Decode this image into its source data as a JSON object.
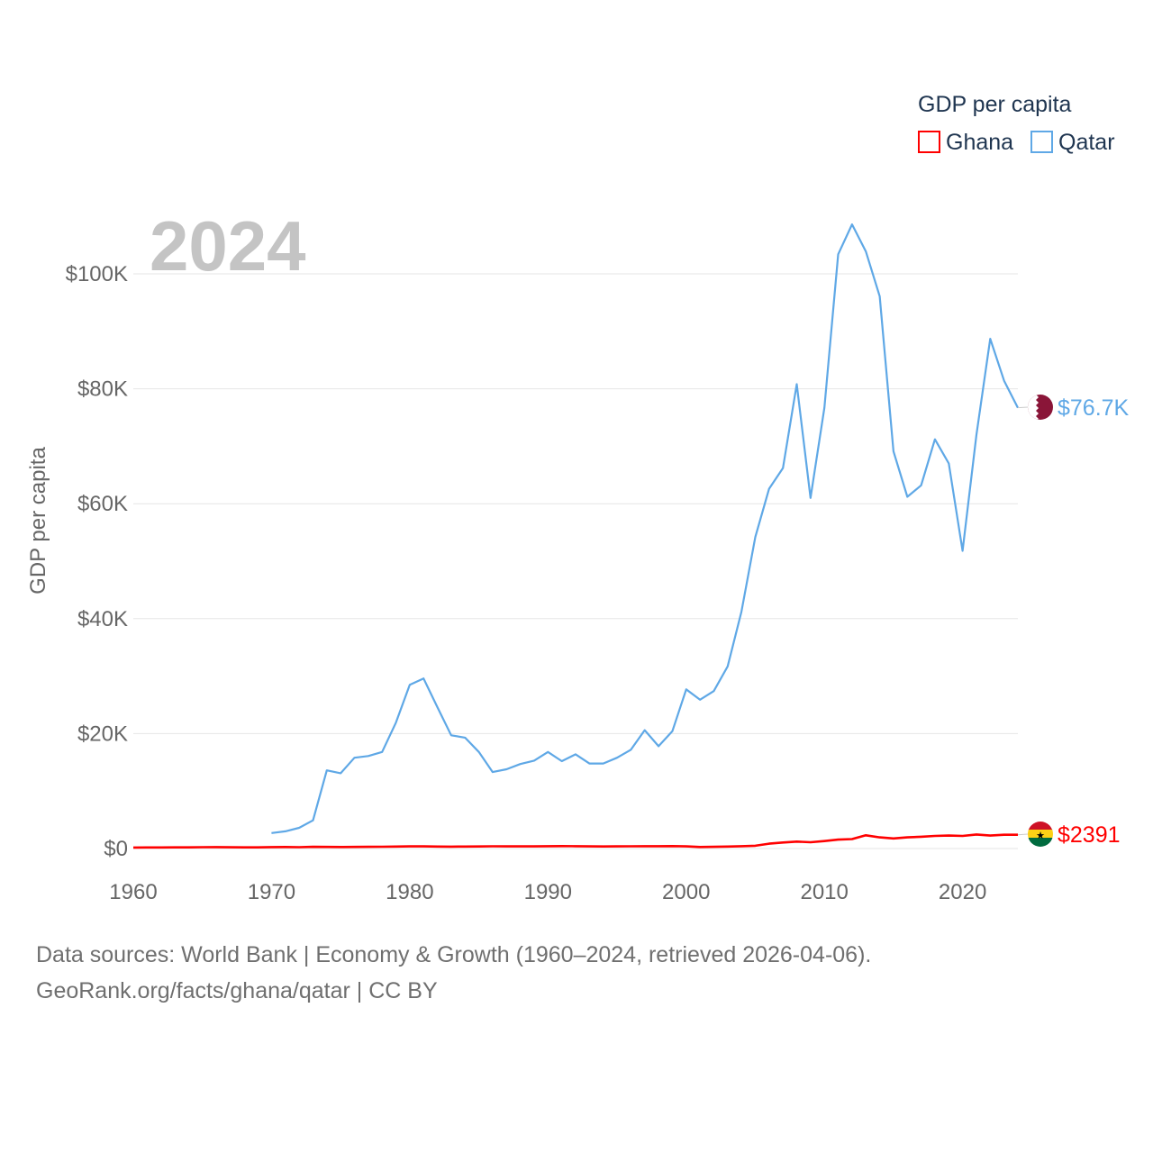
{
  "chart_data": {
    "type": "line",
    "legend_title": "GDP per capita",
    "ylabel": "GDP per capita",
    "highlight_year": "2024",
    "x_ticks": [
      1960,
      1970,
      1980,
      1990,
      2000,
      2010,
      2020
    ],
    "y_ticks": [
      {
        "value": 0,
        "label": "$0"
      },
      {
        "value": 20000,
        "label": "$20K"
      },
      {
        "value": 40000,
        "label": "$40K"
      },
      {
        "value": 60000,
        "label": "$60K"
      },
      {
        "value": 80000,
        "label": "$80K"
      },
      {
        "value": 100000,
        "label": "$100K"
      }
    ],
    "xlim": [
      1960,
      2024
    ],
    "ylim": [
      0,
      110000
    ],
    "series": [
      {
        "name": "Ghana",
        "color": "#ff0000",
        "end_label": "$2391",
        "flag": "ghana-flag",
        "x": [
          1960,
          1961,
          1962,
          1963,
          1964,
          1965,
          1966,
          1967,
          1968,
          1969,
          1970,
          1971,
          1972,
          1973,
          1974,
          1975,
          1976,
          1977,
          1978,
          1979,
          1980,
          1981,
          1982,
          1983,
          1984,
          1985,
          1986,
          1987,
          1988,
          1989,
          1990,
          1991,
          1992,
          1993,
          1994,
          1995,
          1996,
          1997,
          1998,
          1999,
          2000,
          2001,
          2002,
          2003,
          2004,
          2005,
          2006,
          2007,
          2008,
          2009,
          2010,
          2011,
          2012,
          2013,
          2014,
          2015,
          2016,
          2017,
          2018,
          2019,
          2020,
          2021,
          2022,
          2023,
          2024
        ],
        "values": [
          180,
          185,
          190,
          200,
          210,
          230,
          250,
          220,
          200,
          210,
          250,
          260,
          240,
          300,
          280,
          270,
          280,
          300,
          320,
          340,
          380,
          370,
          350,
          330,
          340,
          360,
          390,
          380,
          370,
          380,
          400,
          420,
          410,
          380,
          360,
          370,
          390,
          400,
          410,
          420,
          380,
          270,
          300,
          350,
          400,
          480,
          850,
          1050,
          1200,
          1100,
          1300,
          1550,
          1650,
          2300,
          1950,
          1750,
          1950,
          2050,
          2200,
          2250,
          2200,
          2450,
          2250,
          2400,
          2391
        ]
      },
      {
        "name": "Qatar",
        "color": "#5fa8e6",
        "end_label": "$76.7K",
        "flag": "qatar-flag",
        "x": [
          1970,
          1971,
          1972,
          1973,
          1974,
          1975,
          1976,
          1977,
          1978,
          1979,
          1980,
          1981,
          1982,
          1983,
          1984,
          1985,
          1986,
          1987,
          1988,
          1989,
          1990,
          1991,
          1992,
          1993,
          1994,
          1995,
          1996,
          1997,
          1998,
          1999,
          2000,
          2001,
          2002,
          2003,
          2004,
          2005,
          2006,
          2007,
          2008,
          2009,
          2010,
          2011,
          2012,
          2013,
          2014,
          2015,
          2016,
          2017,
          2018,
          2019,
          2020,
          2021,
          2022,
          2023,
          2024
        ],
        "values": [
          2700,
          3000,
          3600,
          4900,
          13600,
          13100,
          15800,
          16100,
          16800,
          21900,
          28500,
          29600,
          24600,
          19700,
          19300,
          16800,
          13300,
          13800,
          14700,
          15300,
          16800,
          15200,
          16400,
          14800,
          14800,
          15800,
          17200,
          20600,
          17800,
          20400,
          27700,
          25900,
          27400,
          31700,
          41200,
          54200,
          62600,
          66200,
          80800,
          61000,
          76700,
          103400,
          108600,
          103900,
          96100,
          69100,
          61200,
          63200,
          71200,
          67000,
          51800,
          72000,
          88700,
          81400,
          76700
        ]
      }
    ]
  },
  "footer": {
    "line1": "Data sources: World Bank | Economy & Growth (1960–2024, retrieved 2026-04-06).",
    "line2": "GeoRank.org/facts/ghana/qatar | CC BY"
  }
}
